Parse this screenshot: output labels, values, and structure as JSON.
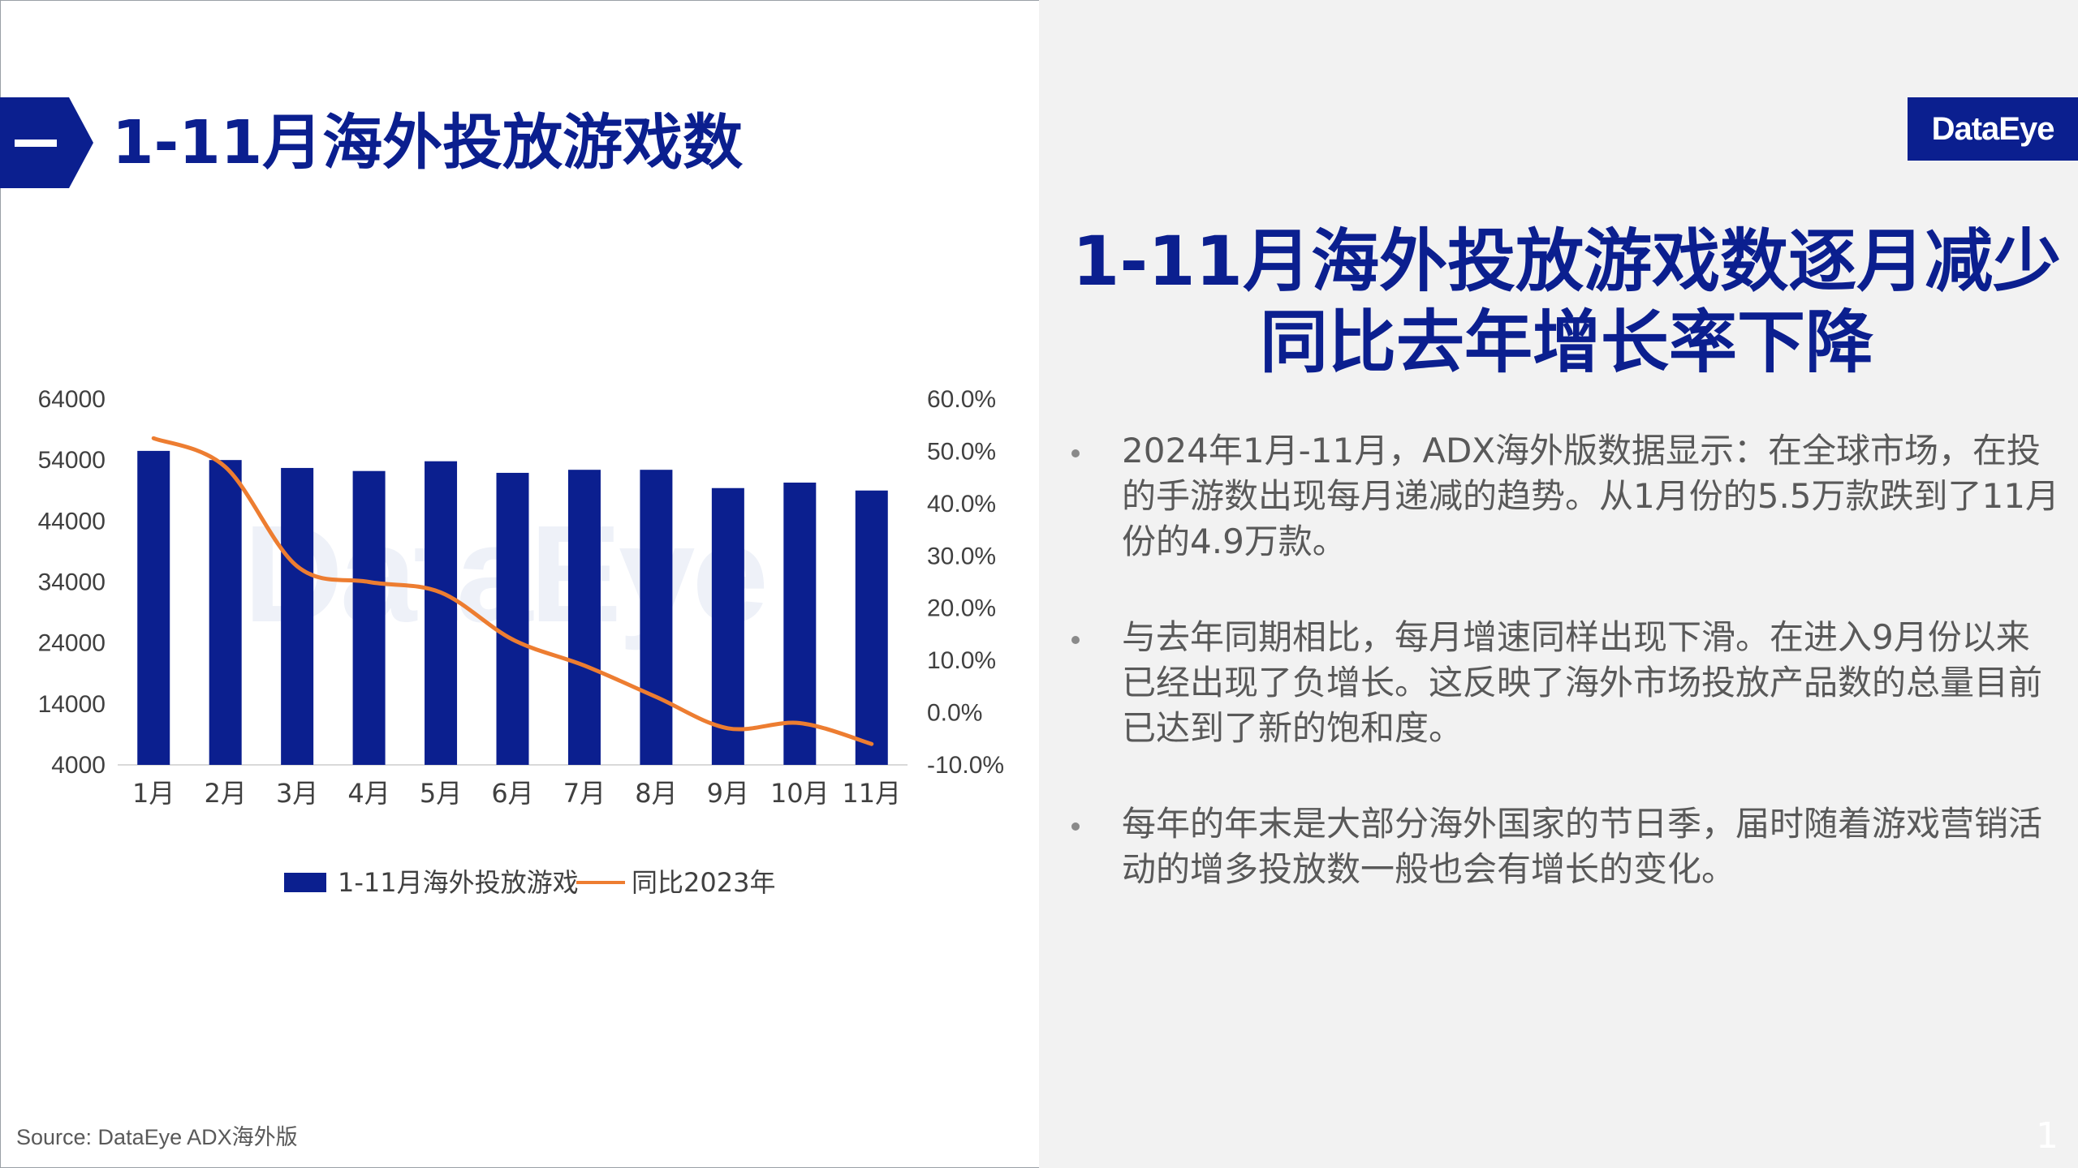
{
  "section": {
    "title": "1-11月海外投放游戏数"
  },
  "logo": {
    "text": "DataEye"
  },
  "headline": {
    "line1": "1-11月海外投放游戏数逐月减少",
    "line2": "同比去年增长率下降"
  },
  "bullets": [
    "2024年1月-11月，ADX海外版数据显示：在全球市场，在投的手游数出现每月递减的趋势。从1月份的5.5万款跌到了11月份的4.9万款。",
    "与去年同期相比，每月增速同样出现下滑。在进入9月份以来已经出现了负增长。这反映了海外市场投放产品数的总量目前已达到了新的饱和度。",
    "每年的年末是大部分海外国家的节日季，届时随着游戏营销活动的增多投放数一般也会有增长的变化。"
  ],
  "watermark": "DataEye",
  "source": "Source:  DataEye ADX海外版",
  "page_number": "1",
  "colors": {
    "brand": "#0b1f8f",
    "bar": "#0b1f8f",
    "line": "#ed7d31",
    "right_panel": "#f2f2f2"
  },
  "chart_data": {
    "type": "bar",
    "categories": [
      "1月",
      "2月",
      "3月",
      "4月",
      "5月",
      "6月",
      "7月",
      "8月",
      "9月",
      "10月",
      "11月"
    ],
    "series": [
      {
        "name": "1-11月海外投放游戏",
        "type": "bar",
        "axis": "left",
        "values": [
          55500,
          54000,
          52700,
          52200,
          53800,
          51900,
          52400,
          52400,
          49400,
          50300,
          49000
        ]
      },
      {
        "name": "同比2023年",
        "type": "line",
        "axis": "right",
        "values": [
          52.5,
          47.0,
          28.0,
          25.0,
          23.0,
          14.0,
          9.0,
          3.0,
          -3.0,
          -2.0,
          -6.0
        ]
      }
    ],
    "y_left": {
      "min": 4000,
      "max": 64000,
      "ticks": [
        "64000",
        "54000",
        "44000",
        "34000",
        "24000",
        "14000",
        "4000"
      ]
    },
    "y_right": {
      "min": -10,
      "max": 60,
      "ticks": [
        "60.0%",
        "50.0%",
        "40.0%",
        "30.0%",
        "20.0%",
        "10.0%",
        "0.0%",
        "-10.0%"
      ]
    },
    "legend_position": "bottom",
    "grid": false
  }
}
